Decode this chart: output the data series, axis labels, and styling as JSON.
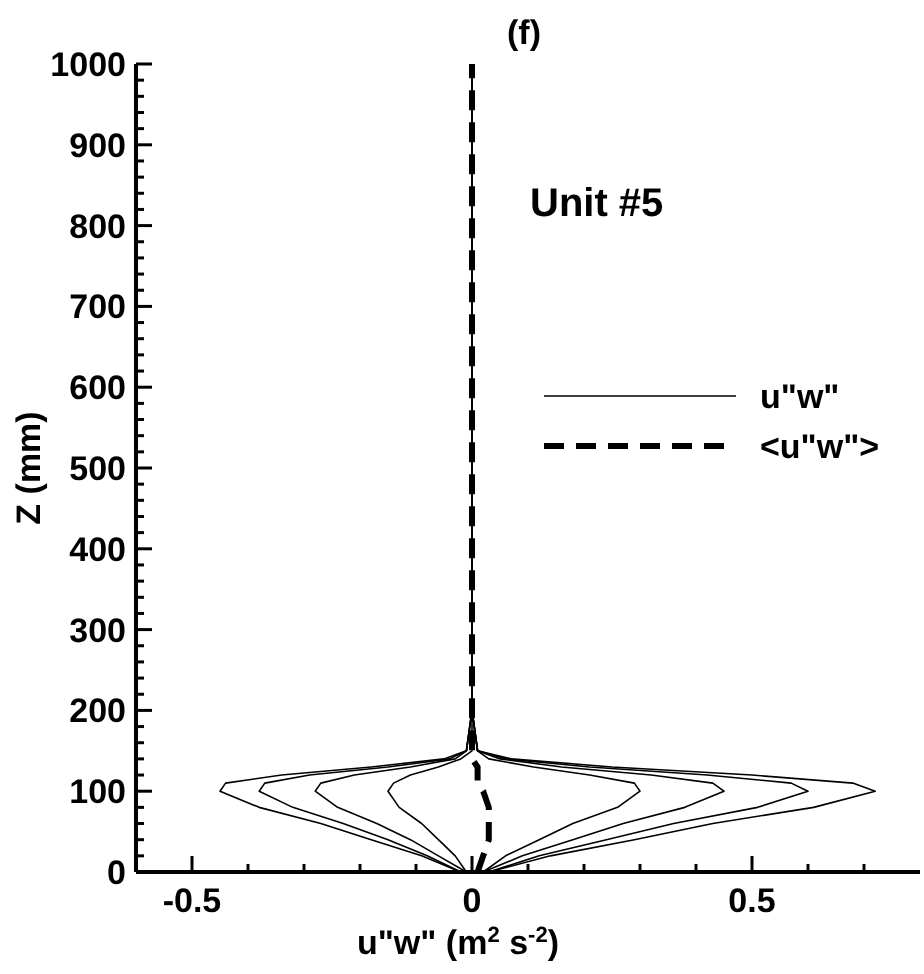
{
  "chart_data": {
    "type": "line",
    "title": "(f)",
    "xlabel": "u\"w\" (m$^{2}$ s$^{-2}$)",
    "ylabel": "Z (mm)",
    "annotations": [
      "Unit #5"
    ],
    "xlim": [
      -0.6,
      0.8
    ],
    "ylim": [
      0,
      1000
    ],
    "xticks": [
      -0.5,
      {
        "value": -0.4,
        "label": null
      },
      {
        "value": -0.3,
        "label": null
      },
      {
        "value": -0.2,
        "label": null
      },
      {
        "value": -0.1,
        "label": null
      },
      0,
      {
        "value": 0.1,
        "label": null
      },
      {
        "value": 0.2,
        "label": null
      },
      {
        "value": 0.3,
        "label": null
      },
      {
        "value": 0.4,
        "label": null
      },
      0.5,
      {
        "value": 0.6,
        "label": null
      },
      {
        "value": 0.7,
        "label": null
      }
    ],
    "yticks": [
      0,
      100,
      200,
      300,
      400,
      500,
      600,
      700,
      800,
      900,
      1000,
      {
        "value": 20,
        "label": null
      },
      {
        "value": 40,
        "label": null
      },
      {
        "value": 60,
        "label": null
      },
      {
        "value": 80,
        "label": null
      },
      {
        "value": 120,
        "label": null
      },
      {
        "value": 140,
        "label": null
      },
      {
        "value": 160,
        "label": null
      },
      {
        "value": 180,
        "label": null
      },
      {
        "value": 220,
        "label": null
      },
      {
        "value": 240,
        "label": null
      },
      {
        "value": 260,
        "label": null
      },
      {
        "value": 280,
        "label": null
      },
      {
        "value": 320,
        "label": null
      },
      {
        "value": 340,
        "label": null
      },
      {
        "value": 360,
        "label": null
      },
      {
        "value": 380,
        "label": null
      },
      {
        "value": 420,
        "label": null
      },
      {
        "value": 440,
        "label": null
      },
      {
        "value": 460,
        "label": null
      },
      {
        "value": 480,
        "label": null
      },
      {
        "value": 520,
        "label": null
      },
      {
        "value": 540,
        "label": null
      },
      {
        "value": 560,
        "label": null
      },
      {
        "value": 580,
        "label": null
      },
      {
        "value": 620,
        "label": null
      },
      {
        "value": 640,
        "label": null
      },
      {
        "value": 660,
        "label": null
      },
      {
        "value": 680,
        "label": null
      },
      {
        "value": 720,
        "label": null
      },
      {
        "value": 740,
        "label": null
      },
      {
        "value": 760,
        "label": null
      },
      {
        "value": 780,
        "label": null
      },
      {
        "value": 820,
        "label": null
      },
      {
        "value": 840,
        "label": null
      },
      {
        "value": 860,
        "label": null
      },
      {
        "value": 880,
        "label": null
      },
      {
        "value": 920,
        "label": null
      },
      {
        "value": 940,
        "label": null
      },
      {
        "value": 960,
        "label": null
      },
      {
        "value": 980,
        "label": null
      }
    ],
    "grid": false,
    "legend": "right",
    "marker": "none",
    "series": [
      {
        "name": "u\"w\"",
        "color": "#000000",
        "line_style": "solid",
        "x": [
          0.03,
          0.14,
          0.29,
          0.43,
          0.61,
          0.72,
          0.68,
          0.5,
          0.25,
          0.07,
          0.01,
          0,
          0,
          0,
          0,
          0
        ],
        "values": [
          0,
          20,
          40,
          60,
          80,
          100,
          110,
          120,
          130,
          140,
          150,
          200,
          400,
          600,
          800,
          1000
        ]
      },
      {
        "color": "#000000",
        "line_style": "solid",
        "x": [
          0.03,
          0.12,
          0.24,
          0.36,
          0.51,
          0.6,
          0.57,
          0.42,
          0.21,
          0.06,
          0.01,
          0,
          0,
          0,
          0,
          0
        ],
        "values": [
          0,
          20,
          40,
          60,
          80,
          100,
          110,
          120,
          130,
          140,
          150,
          200,
          400,
          600,
          800,
          1000
        ]
      },
      {
        "color": "#000000",
        "line_style": "solid",
        "x": [
          0.02,
          0.09,
          0.18,
          0.27,
          0.38,
          0.45,
          0.43,
          0.32,
          0.16,
          0.05,
          0.01,
          0,
          0,
          0,
          0,
          0
        ],
        "values": [
          0,
          20,
          40,
          60,
          80,
          100,
          110,
          120,
          130,
          140,
          150,
          200,
          400,
          600,
          800,
          1000
        ]
      },
      {
        "color": "#000000",
        "line_style": "solid",
        "x": [
          0.02,
          0.06,
          0.12,
          0.18,
          0.26,
          0.3,
          0.29,
          0.21,
          0.11,
          0.03,
          0.01,
          0,
          0,
          0,
          0,
          0
        ],
        "values": [
          0,
          20,
          40,
          60,
          80,
          100,
          110,
          120,
          130,
          140,
          150,
          200,
          400,
          600,
          800,
          1000
        ]
      },
      {
        "color": "#000000",
        "line_style": "solid",
        "x": [
          -0.02,
          -0.09,
          -0.18,
          -0.27,
          -0.38,
          -0.45,
          -0.44,
          -0.34,
          -0.18,
          -0.05,
          -0.01,
          0,
          0,
          0,
          0,
          0
        ],
        "values": [
          0,
          20,
          40,
          60,
          80,
          100,
          110,
          120,
          130,
          140,
          150,
          200,
          400,
          600,
          800,
          1000
        ]
      },
      {
        "color": "#000000",
        "line_style": "solid",
        "x": [
          -0.02,
          -0.08,
          -0.15,
          -0.23,
          -0.32,
          -0.38,
          -0.37,
          -0.29,
          -0.15,
          -0.04,
          -0.01,
          0,
          0,
          0,
          0,
          0
        ],
        "values": [
          0,
          20,
          40,
          60,
          80,
          100,
          110,
          120,
          130,
          140,
          150,
          200,
          400,
          600,
          800,
          1000
        ]
      },
      {
        "color": "#000000",
        "line_style": "solid",
        "x": [
          -0.01,
          -0.06,
          -0.11,
          -0.17,
          -0.24,
          -0.28,
          -0.27,
          -0.21,
          -0.11,
          -0.03,
          -0.01,
          0,
          0,
          0,
          0,
          0
        ],
        "values": [
          0,
          20,
          40,
          60,
          80,
          100,
          110,
          120,
          130,
          140,
          150,
          200,
          400,
          600,
          800,
          1000
        ]
      },
      {
        "color": "#000000",
        "line_style": "solid",
        "x": [
          -0.01,
          -0.03,
          -0.06,
          -0.09,
          -0.13,
          -0.15,
          -0.14,
          -0.11,
          -0.06,
          -0.02,
          0,
          0,
          0,
          0,
          0,
          0
        ],
        "values": [
          0,
          20,
          40,
          60,
          80,
          100,
          110,
          120,
          130,
          140,
          150,
          200,
          400,
          600,
          800,
          1000
        ]
      },
      {
        "name": "<u\"w\">",
        "color": "#000000",
        "line_style": "dashed",
        "x": [
          0.01,
          0.02,
          0.03,
          0.03,
          0.03,
          0.02,
          0.01,
          0.01,
          0.01,
          0,
          0,
          0,
          0,
          0,
          0,
          0
        ],
        "values": [
          0,
          20,
          40,
          60,
          80,
          100,
          110,
          120,
          130,
          140,
          150,
          200,
          400,
          600,
          800,
          1000
        ]
      }
    ]
  }
}
